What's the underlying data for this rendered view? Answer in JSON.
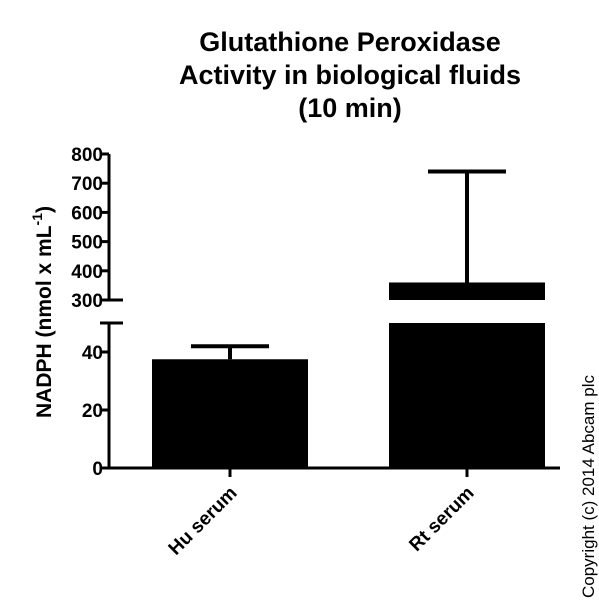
{
  "chart_data": {
    "type": "bar",
    "title_lines": [
      "Glutathione Peroxidase",
      "Activity in biological fluids",
      "(10 min)"
    ],
    "ylabel": "NADPH (nmol x mL",
    "ylabel_superscript": "-1",
    "ylabel_close": ")",
    "xlabel": "",
    "categories": [
      "Hu serum",
      "Rt serum"
    ],
    "values": [
      37.5,
      360
    ],
    "error_upper": [
      42,
      740
    ],
    "y_axis_broken": true,
    "y_segments": [
      {
        "range": [
          0,
          50
        ],
        "ticks": [
          0,
          20,
          40
        ]
      },
      {
        "range": [
          300,
          800
        ],
        "ticks": [
          300,
          400,
          500,
          600,
          700,
          800
        ]
      }
    ],
    "bar_color": "#000000",
    "grid": false
  },
  "copyright": "Copyright (c) 2014 Abcam plc"
}
